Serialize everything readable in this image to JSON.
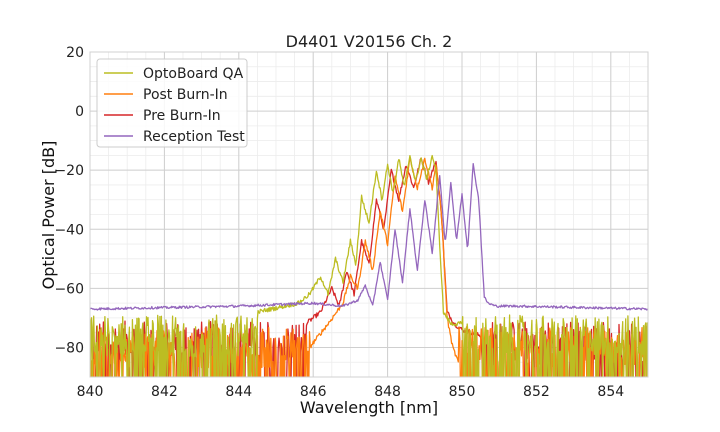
{
  "chart_data": {
    "type": "line",
    "title": "D4401 V20156 Ch. 2",
    "xlabel": "Wavelength [nm]",
    "ylabel": "Optical Power [dB]",
    "xlim": [
      840,
      855
    ],
    "ylim": [
      -90,
      20
    ],
    "xticks": [
      840,
      842,
      844,
      846,
      848,
      850,
      852,
      854
    ],
    "yticks": [
      -80,
      -60,
      -40,
      -20,
      0,
      20
    ],
    "x_minor_step": 0.5,
    "y_minor_step": 5,
    "grid": true,
    "legend_position": "top-left",
    "series": [
      {
        "name": "OptoBoard QA",
        "color": "#bcbd22",
        "noise_floor": -76,
        "x": [
          840,
          844.5,
          845.6,
          845.9,
          846.2,
          846.4,
          846.6,
          846.8,
          847.0,
          847.15,
          847.3,
          847.5,
          847.7,
          847.85,
          848.0,
          848.15,
          848.3,
          848.45,
          848.6,
          848.75,
          848.9,
          849.05,
          849.2,
          849.3,
          849.4,
          849.5,
          849.7,
          850.0,
          855
        ],
        "y": [
          -70,
          -68,
          -65,
          -62,
          -56,
          -62,
          -50,
          -58,
          -44,
          -52,
          -29,
          -38,
          -20,
          -30,
          -18,
          -28,
          -16,
          -26,
          -15,
          -24,
          -16,
          -23,
          -15,
          -20,
          -45,
          -68,
          -72,
          -72,
          -73
        ]
      },
      {
        "name": "Post Burn-In",
        "color": "#ff7f0e",
        "noise_floor": -80,
        "x": [
          840,
          845.9,
          846.4,
          846.8,
          847.0,
          847.2,
          847.4,
          847.6,
          847.8,
          848.0,
          848.2,
          848.4,
          848.6,
          848.8,
          849.0,
          849.2,
          849.3,
          849.45,
          849.6,
          849.75,
          849.9,
          855
        ],
        "y": [
          -85,
          -80,
          -72,
          -65,
          -56,
          -60,
          -44,
          -54,
          -34,
          -45,
          -22,
          -34,
          -16,
          -26,
          -16,
          -26,
          -18,
          -35,
          -70,
          -80,
          -85,
          -86
        ]
      },
      {
        "name": "Pre Burn-In",
        "color": "#d62728",
        "noise_floor": -78,
        "x": [
          840,
          845.8,
          846.2,
          846.5,
          846.7,
          846.9,
          847.1,
          847.3,
          847.5,
          847.7,
          847.9,
          848.1,
          848.3,
          848.5,
          848.7,
          848.9,
          849.1,
          849.3,
          849.45,
          849.6,
          849.8,
          850.0,
          850.5,
          855
        ],
        "y": [
          -80,
          -72,
          -68,
          -60,
          -66,
          -54,
          -62,
          -44,
          -52,
          -30,
          -40,
          -20,
          -30,
          -18,
          -26,
          -16,
          -24,
          -17,
          -35,
          -68,
          -72,
          -74,
          -76,
          -78
        ]
      },
      {
        "name": "Reception Test",
        "color": "#9467bd",
        "noise_floor": null,
        "x": [
          840,
          844,
          846,
          846.8,
          847.2,
          847.4,
          847.6,
          847.8,
          848.0,
          848.2,
          848.4,
          848.6,
          848.8,
          849.0,
          849.2,
          849.4,
          849.55,
          849.7,
          849.85,
          850.0,
          850.15,
          850.3,
          850.45,
          850.6,
          850.7,
          850.9,
          851.5,
          855
        ],
        "y": [
          -67,
          -66,
          -65,
          -66,
          -64,
          -59,
          -66,
          -51,
          -64,
          -40,
          -58,
          -33,
          -54,
          -30,
          -48,
          -22,
          -45,
          -24,
          -44,
          -28,
          -47,
          -18,
          -30,
          -63,
          -65,
          -66,
          -66,
          -67
        ]
      }
    ]
  }
}
